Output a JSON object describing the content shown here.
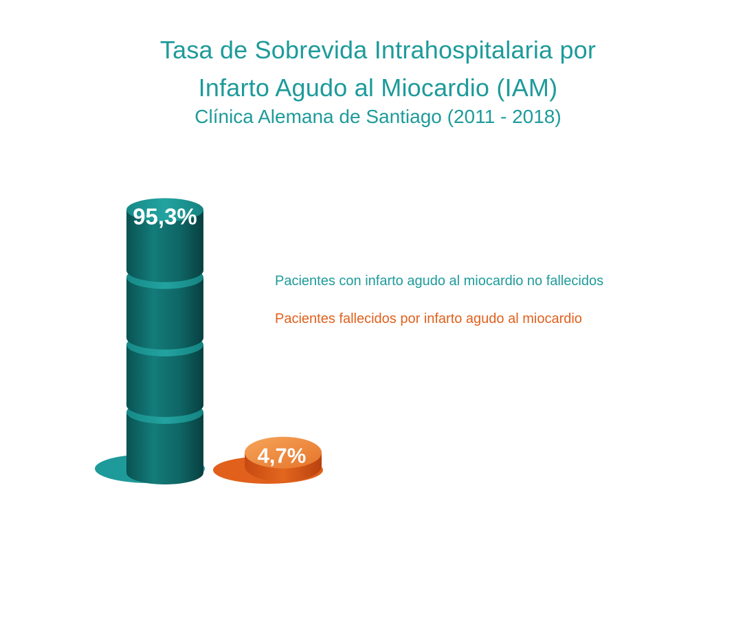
{
  "title_lines": [
    "Tasa de Sobrevida Intrahospitalaria por",
    "Infarto Agudo al Miocardio (IAM)"
  ],
  "subtitle": "Clínica Alemana de Santiago (2011 - 2018)",
  "colors": {
    "teal": "#1e9a9a",
    "teal_dark": "#0b5f5f",
    "orange": "#e0601c",
    "orange_light": "#f29a4a"
  },
  "chart_data": {
    "type": "bar",
    "categories": [
      "Pacientes con infarto agudo al miocardio no fallecidos",
      "Pacientes fallecidos por infarto agudo al miocardio"
    ],
    "values": [
      95.3,
      4.7
    ],
    "data_labels": [
      "95,3%",
      "4,7%"
    ],
    "unit": "%",
    "ylim": [
      0,
      100
    ],
    "legend_placement": "right",
    "grid": false
  }
}
